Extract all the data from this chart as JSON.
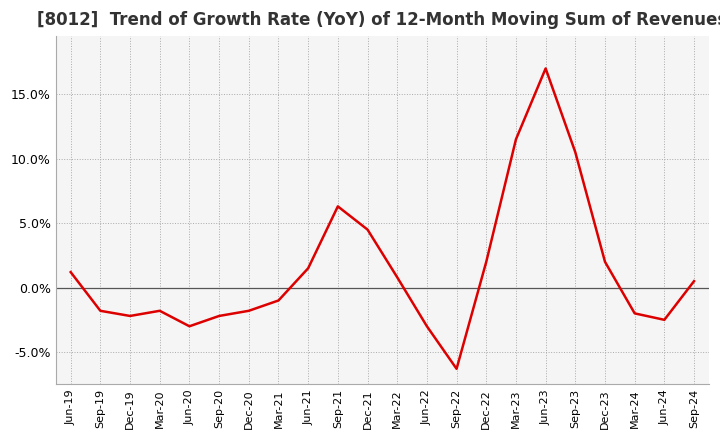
{
  "title": "[8012]  Trend of Growth Rate (YoY) of 12-Month Moving Sum of Revenues",
  "title_fontsize": 12,
  "background_color": "#ffffff",
  "plot_bg_color": "#f5f5f5",
  "grid_color": "#aaaaaa",
  "line_color": "#dd0000",
  "ylim": [
    -0.075,
    0.195
  ],
  "yticks": [
    -0.05,
    0.0,
    0.05,
    0.1,
    0.15
  ],
  "ytick_labels": [
    "-5.0%",
    "0.0%",
    "5.0%",
    "10.0%",
    "15.0%"
  ],
  "x_labels": [
    "Jun-19",
    "Sep-19",
    "Dec-19",
    "Mar-20",
    "Jun-20",
    "Sep-20",
    "Dec-20",
    "Mar-21",
    "Jun-21",
    "Sep-21",
    "Dec-21",
    "Mar-22",
    "Jun-22",
    "Sep-22",
    "Dec-22",
    "Mar-23",
    "Jun-23",
    "Sep-23",
    "Dec-23",
    "Mar-24",
    "Jun-24",
    "Sep-24"
  ],
  "values": [
    0.012,
    -0.018,
    -0.022,
    -0.018,
    -0.03,
    -0.022,
    -0.018,
    -0.01,
    0.015,
    0.063,
    0.045,
    0.008,
    -0.03,
    -0.063,
    0.02,
    0.115,
    0.17,
    0.105,
    0.02,
    -0.02,
    -0.025,
    0.005
  ]
}
